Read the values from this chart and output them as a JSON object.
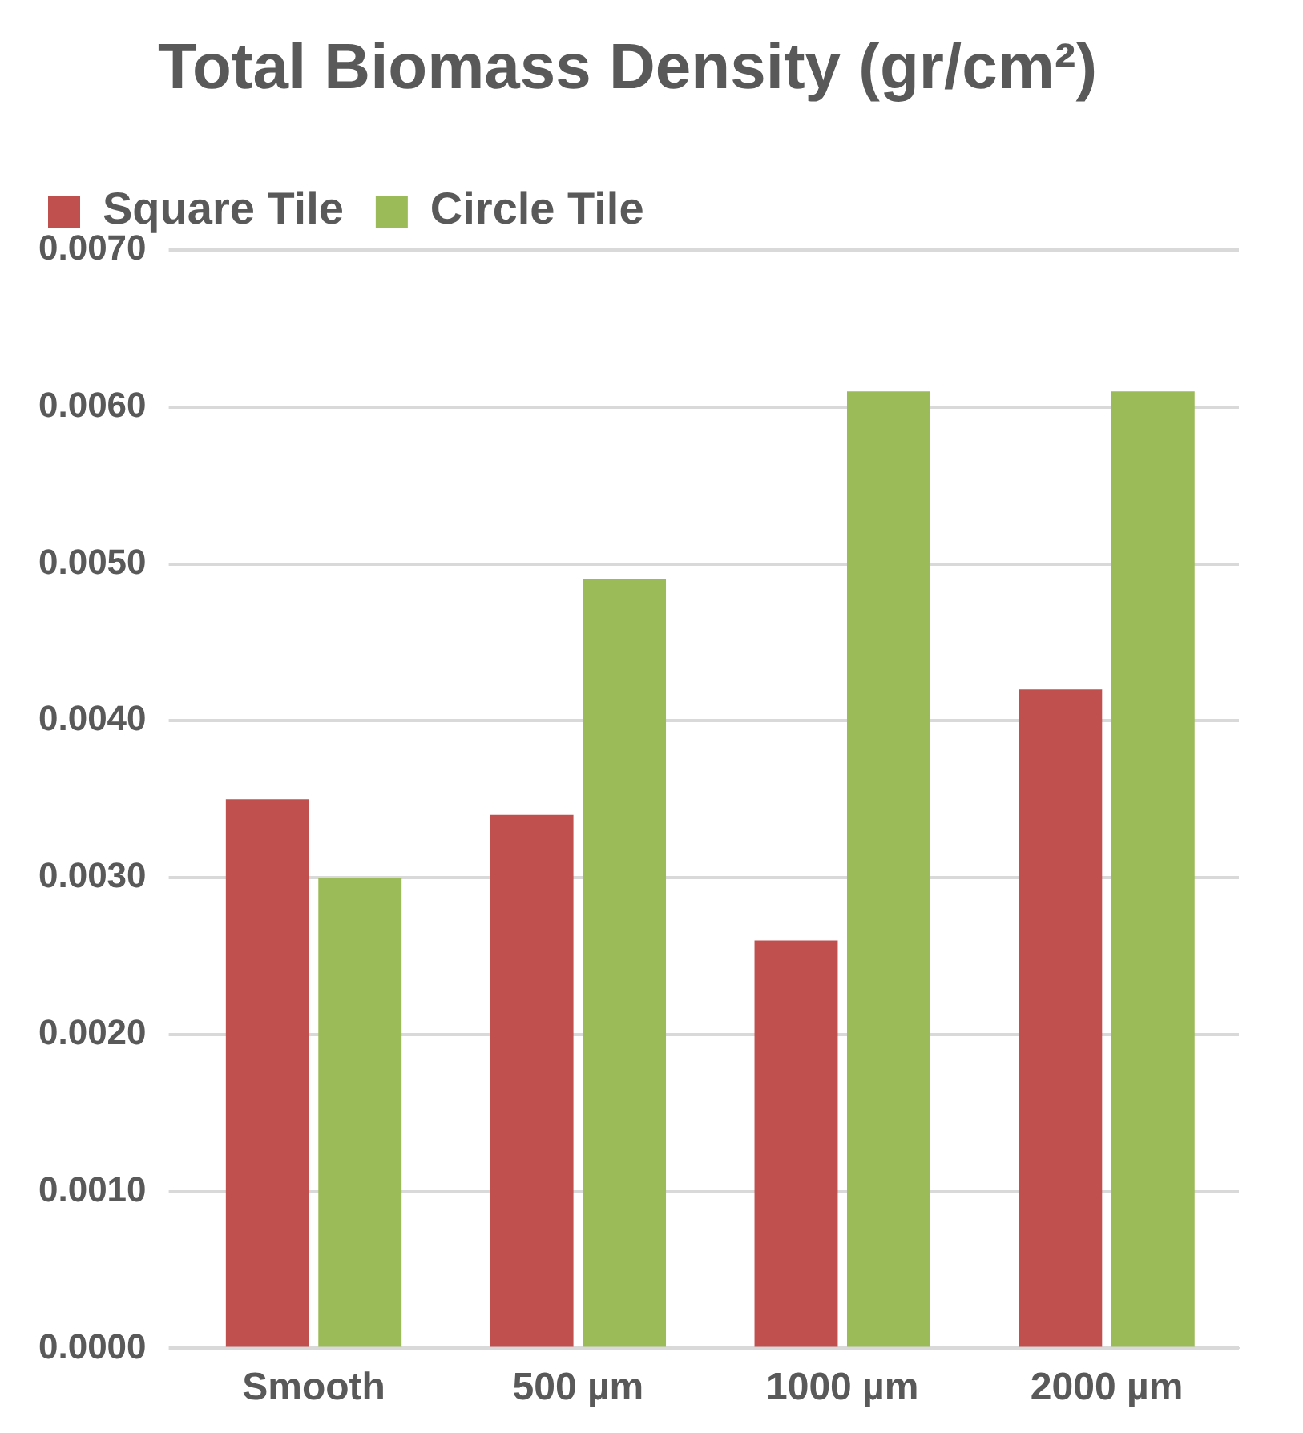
{
  "chart_data": {
    "type": "bar",
    "title": "Total Biomass Density (gr/cm²)",
    "categories": [
      "Smooth",
      "500 µm",
      "1000 µm",
      "2000 µm"
    ],
    "series": [
      {
        "name": "Square Tile",
        "color": "#c0504d",
        "values": [
          0.0035,
          0.0034,
          0.0026,
          0.0042
        ]
      },
      {
        "name": "Circle Tile",
        "color": "#9bbb59",
        "values": [
          0.003,
          0.0049,
          0.0061,
          0.0061
        ]
      }
    ],
    "ylim": [
      0,
      0.007
    ],
    "yticks": [
      {
        "value": 0,
        "label": "0.0000"
      },
      {
        "value": 0.001,
        "label": "0.0010"
      },
      {
        "value": 0.002,
        "label": "0.0020"
      },
      {
        "value": 0.003,
        "label": "0.0030"
      },
      {
        "value": 0.004,
        "label": "0.0040"
      },
      {
        "value": 0.005,
        "label": "0.0050"
      },
      {
        "value": 0.006,
        "label": "0.0060"
      },
      {
        "value": 0.007,
        "label": "0.0070"
      }
    ],
    "grid": "y",
    "legend": "top left"
  }
}
